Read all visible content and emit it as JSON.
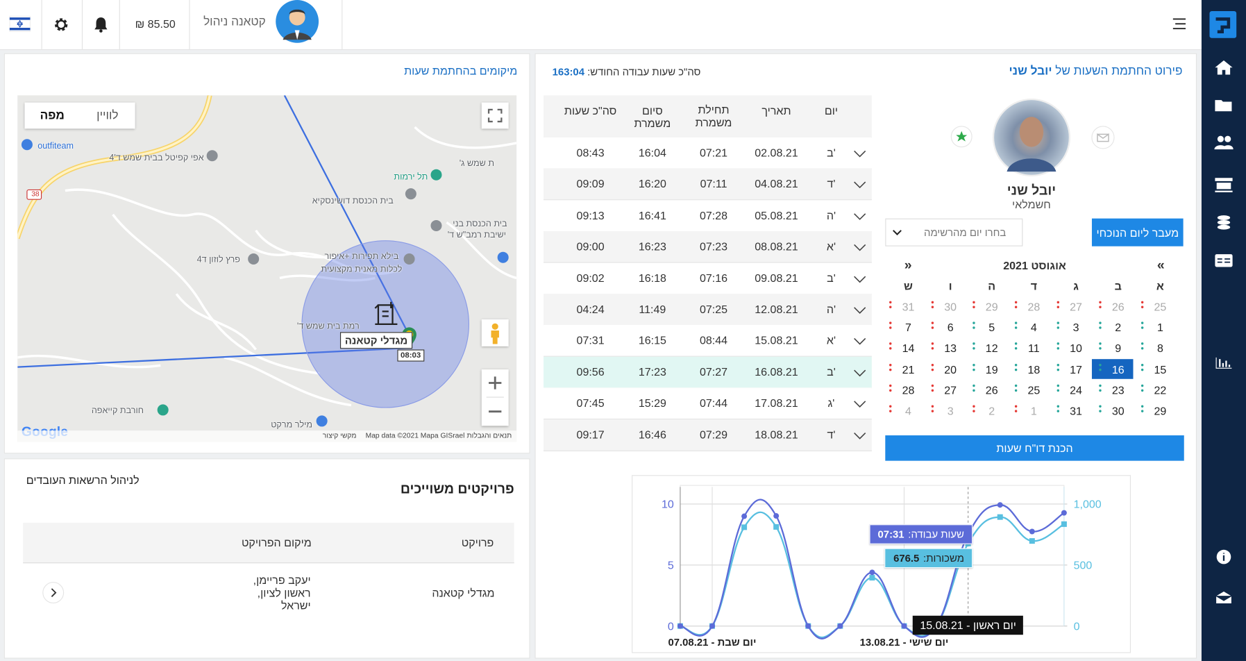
{
  "topbar": {
    "user_name": "קטאנה ניהול",
    "balance": "₪ 85.50"
  },
  "locations": {
    "title": "מיקומים בהחתמת שעות",
    "map_buttons": [
      "מפה",
      "לוויין"
    ],
    "places": [
      "outfiteam",
      "אפי קפיטל בבית שמש ד'4",
      "תל ירמות",
      "בית הכנסת דושינסקיא",
      "בית הכנסת בני",
      "ישיבת רמב\"ש ד'",
      "פרץ לוזון ד4",
      "בילא תפירות +איפור",
      "לכלות מאנית מקצועית",
      "רמת בית שמש ד'",
      "חורבת קייאפה",
      "מילר מרקט",
      "ת שמש ג'"
    ],
    "road_number": "38",
    "marker_label": "מגדלי קטאנה",
    "marker_time": "08:03",
    "logo": "Google",
    "attribution": [
      "תנאים והגבלות",
      "Map data ©2021 Mapa GISrael",
      "מקשי קיצור"
    ]
  },
  "projects": {
    "title": "פרויקטים משוייכים",
    "link": "לניהול הרשאות העובדים",
    "columns": [
      "פרויקט",
      "מיקום הפרויקט"
    ],
    "rows": [
      {
        "name": "מגדלי קטאנה",
        "location": [
          "יעקב פריימן,",
          "ראשון לציון,",
          "ישראל"
        ]
      }
    ]
  },
  "hours": {
    "title": "פירוט החתמת השעות של",
    "employee": "יובל שני",
    "total_label": "סה\"כ שעות עבודה החודש:",
    "total": "163:04",
    "columns": [
      "יום",
      "תאריך",
      "תחילת משמרת",
      "סיום משמרת",
      "סה\"כ שעות"
    ],
    "rows": [
      [
        "ב'",
        "02.08.21",
        "07:21",
        "16:04",
        "08:43"
      ],
      [
        "ד'",
        "04.08.21",
        "07:11",
        "16:20",
        "09:09"
      ],
      [
        "ה'",
        "05.08.21",
        "07:28",
        "16:41",
        "09:13"
      ],
      [
        "א'",
        "08.08.21",
        "07:23",
        "16:23",
        "09:00"
      ],
      [
        "ב'",
        "09.08.21",
        "07:16",
        "16:18",
        "09:02"
      ],
      [
        "ה'",
        "12.08.21",
        "07:25",
        "11:49",
        "04:24"
      ],
      [
        "א'",
        "15.08.21",
        "08:44",
        "16:15",
        "07:31"
      ],
      [
        "ב'",
        "16.08.21",
        "07:27",
        "17:23",
        "09:56"
      ],
      [
        "ג'",
        "17.08.21",
        "07:44",
        "15:29",
        "07:45"
      ],
      [
        "ד'",
        "18.08.21",
        "07:29",
        "16:46",
        "09:17"
      ]
    ],
    "highlight_row": 7
  },
  "profile": {
    "name": "יובל שני",
    "role": "חשמלאי",
    "today_button": "מעבר ליום הנוכחי",
    "day_select": "בחרו יום מהרשימה",
    "report_button": "הכנת דו\"ח שעות"
  },
  "calendar": {
    "title": "אוגוסט 2021",
    "prev": "«",
    "next": "»",
    "weekdays": [
      "א",
      "ב",
      "ג",
      "ד",
      "ה",
      "ו",
      "ש"
    ],
    "weeks": [
      [
        25,
        26,
        27,
        28,
        29,
        30,
        31
      ],
      [
        1,
        2,
        3,
        4,
        5,
        6,
        7
      ],
      [
        8,
        9,
        10,
        11,
        12,
        13,
        14
      ],
      [
        15,
        16,
        17,
        18,
        19,
        20,
        21
      ],
      [
        22,
        23,
        24,
        25,
        26,
        27,
        28
      ],
      [
        29,
        30,
        31,
        1,
        2,
        3,
        4
      ]
    ],
    "selected_day": 16
  },
  "chart_data": {
    "type": "line",
    "categories": [
      null,
      "יום שבת - 07.08.21",
      null,
      null,
      null,
      null,
      null,
      "יום שישי - 13.08.21",
      null,
      "יום ראשון - 15.08.21",
      null,
      null,
      null
    ],
    "series": [
      {
        "name": "שעות עבודה:",
        "color": "#5c6bd8",
        "values": [
          0,
          0,
          9.0,
          9.03,
          0,
          0,
          4.4,
          0,
          0,
          7.52,
          9.93,
          7.75,
          9.28
        ],
        "value_labels": [
          null,
          null,
          null,
          null,
          null,
          null,
          null,
          null,
          null,
          "07:31",
          null,
          null,
          null
        ]
      },
      {
        "name": "משכורות:",
        "color": "#58bfe0",
        "axis": "y2",
        "values": [
          0,
          0,
          810,
          812.7,
          0,
          0,
          396,
          0,
          0,
          676.5,
          893.7,
          697.5,
          835.5
        ]
      }
    ],
    "ylim": [
      0,
      11.4
    ],
    "yticks": [
      0,
      5,
      10
    ],
    "y2lim": [
      0,
      1140
    ],
    "y2ticks": [
      0,
      500,
      {
        "value": 1000,
        "label": "1,000"
      }
    ],
    "grid": true,
    "hover_index": 9
  }
}
